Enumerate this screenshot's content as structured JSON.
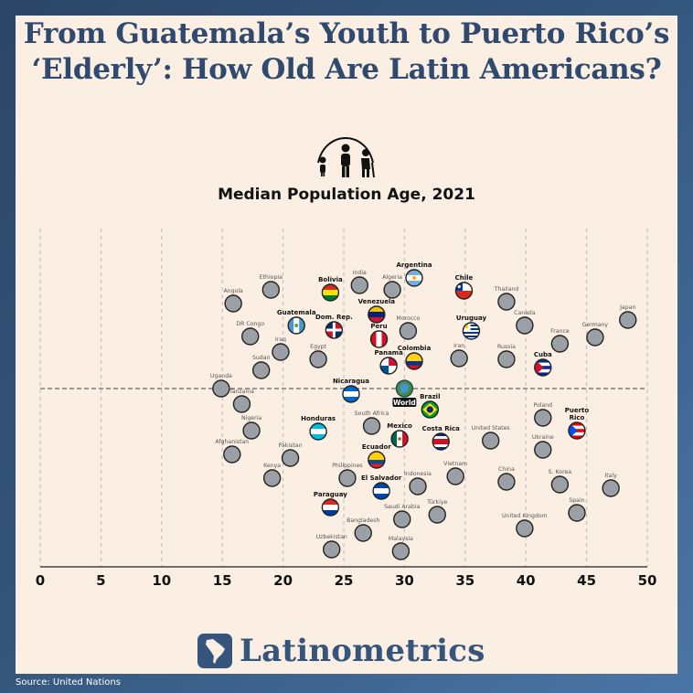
{
  "title": "From Guatemala’s Youth to Puerto Rico’s ‘Elderly’: How Old Are Latin Americans?",
  "subtitle": "Median Population Age, 2021",
  "brand": "Latinometrics",
  "source": "Source: United Nations",
  "colors": {
    "background": "#fbefe3",
    "frame": "#2f4a6e",
    "title": "#2f4a6e",
    "world_dot": "#9aa0a5",
    "dot_stroke": "#222222",
    "grid": "#bbbbbb"
  },
  "icons": [
    "family-icon",
    "globe-icon",
    "map-logo-icon"
  ],
  "chart_data": {
    "type": "scatter",
    "title": "Median Population Age, 2021",
    "xlabel": "",
    "ylabel": "",
    "xlim": [
      0,
      50
    ],
    "xticks": [
      0,
      5,
      10,
      15,
      20,
      25,
      30,
      35,
      40,
      45,
      50
    ],
    "grid": "vertical dashed",
    "reference_line": "World",
    "points": [
      {
        "label": "Angola",
        "x": 15.9,
        "latam": false
      },
      {
        "label": "Ethiopia",
        "x": 19.0,
        "latam": false
      },
      {
        "label": "Bolivia",
        "x": 23.9,
        "latam": true,
        "flag": "bolivia"
      },
      {
        "label": "India",
        "x": 26.3,
        "latam": false
      },
      {
        "label": "Algeria",
        "x": 29.0,
        "latam": false
      },
      {
        "label": "Argentina",
        "x": 30.8,
        "latam": true,
        "flag": "argentina"
      },
      {
        "label": "Chile",
        "x": 34.9,
        "latam": true,
        "flag": "chile"
      },
      {
        "label": "Thailand",
        "x": 38.4,
        "latam": false
      },
      {
        "label": "Japan",
        "x": 48.4,
        "latam": false
      },
      {
        "label": "Venezuela",
        "x": 27.7,
        "latam": true,
        "flag": "venezuela"
      },
      {
        "label": "DR Congo",
        "x": 17.3,
        "latam": false
      },
      {
        "label": "Guatemala",
        "x": 21.1,
        "latam": true,
        "flag": "guatemala"
      },
      {
        "label": "Dom. Rep.",
        "x": 24.2,
        "latam": true,
        "flag": "domrep"
      },
      {
        "label": "Morocco",
        "x": 30.3,
        "latam": false
      },
      {
        "label": "Uruguay",
        "x": 35.5,
        "latam": true,
        "flag": "uruguay"
      },
      {
        "label": "Canada",
        "x": 39.9,
        "latam": false
      },
      {
        "label": "Germany",
        "x": 45.7,
        "latam": false
      },
      {
        "label": "France",
        "x": 42.8,
        "latam": false
      },
      {
        "label": "Peru",
        "x": 27.9,
        "latam": true,
        "flag": "peru"
      },
      {
        "label": "Iraq",
        "x": 19.8,
        "latam": false
      },
      {
        "label": "Egypt",
        "x": 22.9,
        "latam": false
      },
      {
        "label": "Sudan",
        "x": 18.2,
        "latam": false
      },
      {
        "label": "Panama",
        "x": 28.7,
        "latam": true,
        "flag": "panama"
      },
      {
        "label": "Colombia",
        "x": 30.8,
        "latam": true,
        "flag": "colombia"
      },
      {
        "label": "Iran",
        "x": 34.5,
        "latam": false
      },
      {
        "label": "Russia",
        "x": 38.4,
        "latam": false
      },
      {
        "label": "Cuba",
        "x": 41.4,
        "latam": true,
        "flag": "cuba"
      },
      {
        "label": "Uganda",
        "x": 14.9,
        "latam": false
      },
      {
        "label": "Nicaragua",
        "x": 25.6,
        "latam": true,
        "flag": "nicaragua"
      },
      {
        "label": "World",
        "x": 30.0,
        "latam": false,
        "world": true
      },
      {
        "label": "Tanzania",
        "x": 16.6,
        "latam": false
      },
      {
        "label": "Brazil",
        "x": 32.1,
        "latam": true,
        "flag": "brazil"
      },
      {
        "label": "Poland",
        "x": 41.4,
        "latam": false
      },
      {
        "label": "Puerto Rico",
        "x": 44.2,
        "latam": true,
        "flag": "puertorico"
      },
      {
        "label": "Nigeria",
        "x": 17.4,
        "latam": false
      },
      {
        "label": "Honduras",
        "x": 22.9,
        "latam": true,
        "flag": "honduras"
      },
      {
        "label": "South Africa",
        "x": 27.3,
        "latam": false
      },
      {
        "label": "Mexico",
        "x": 29.6,
        "latam": true,
        "flag": "mexico"
      },
      {
        "label": "Costa Rica",
        "x": 33.0,
        "latam": true,
        "flag": "costarica"
      },
      {
        "label": "United States",
        "x": 37.1,
        "latam": false
      },
      {
        "label": "Afghanistan",
        "x": 15.8,
        "latam": false
      },
      {
        "label": "Pakistan",
        "x": 20.6,
        "latam": false
      },
      {
        "label": "Ecuador",
        "x": 27.7,
        "latam": true,
        "flag": "ecuador"
      },
      {
        "label": "Ukraine",
        "x": 41.4,
        "latam": false
      },
      {
        "label": "Kenya",
        "x": 19.1,
        "latam": false
      },
      {
        "label": "Philippines",
        "x": 25.3,
        "latam": false
      },
      {
        "label": "Indonesia",
        "x": 31.1,
        "latam": false
      },
      {
        "label": "Vietnam",
        "x": 34.2,
        "latam": false
      },
      {
        "label": "China",
        "x": 38.4,
        "latam": false
      },
      {
        "label": "S. Korea",
        "x": 42.8,
        "latam": false
      },
      {
        "label": "Italy",
        "x": 47.0,
        "latam": false
      },
      {
        "label": "El Salvador",
        "x": 28.1,
        "latam": true,
        "flag": "elsalvador"
      },
      {
        "label": "Paraguay",
        "x": 23.9,
        "latam": true,
        "flag": "paraguay"
      },
      {
        "label": "Saudi Arabia",
        "x": 29.8,
        "latam": false
      },
      {
        "label": "Türkiye",
        "x": 32.7,
        "latam": false
      },
      {
        "label": "Spain",
        "x": 44.2,
        "latam": false
      },
      {
        "label": "Bangladesh",
        "x": 26.6,
        "latam": false
      },
      {
        "label": "United Kingdom",
        "x": 39.9,
        "latam": false
      },
      {
        "label": "Uzbekistan",
        "x": 24.0,
        "latam": false
      },
      {
        "label": "Malaysia",
        "x": 29.7,
        "latam": false
      }
    ]
  }
}
